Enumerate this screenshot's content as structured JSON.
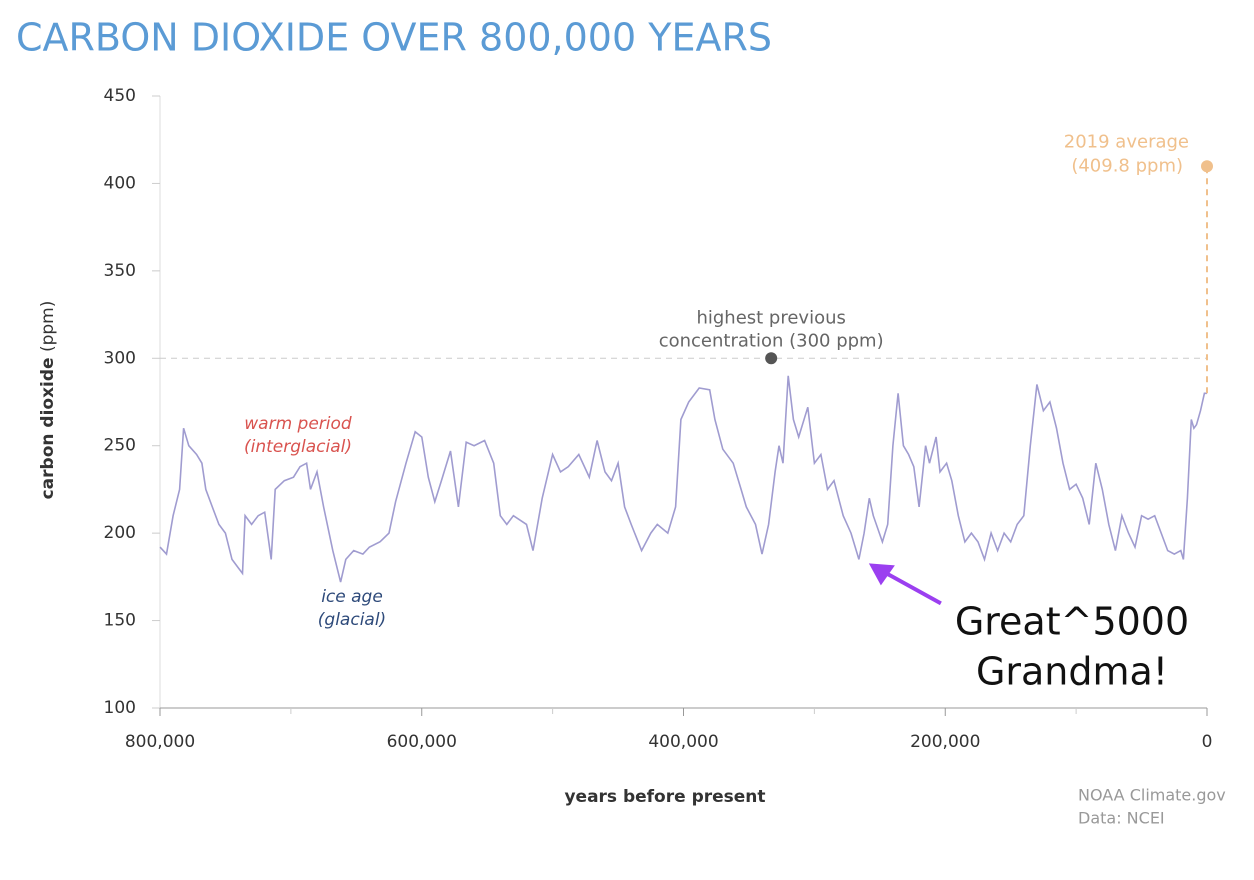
{
  "chart_data": {
    "type": "line",
    "title": "CARBON DIOXIDE OVER 800,000 YEARS",
    "ylabel": [
      "carbon dioxide",
      "(ppm)"
    ],
    "xlabel": "years before present",
    "source": [
      "NOAA Climate.gov",
      "Data: NCEI"
    ],
    "color": "#a09cd0",
    "xlim": [
      800000,
      0
    ],
    "ylim": [
      100,
      450
    ],
    "yticks": [
      100,
      150,
      200,
      250,
      300,
      350,
      400,
      450
    ],
    "xticks": [
      {
        "value": 800000,
        "label": "800,000"
      },
      {
        "value": 600000,
        "label": "600,000"
      },
      {
        "value": 400000,
        "label": "400,000"
      },
      {
        "value": 200000,
        "label": "200,000"
      },
      0
    ],
    "xminor_ticks": [
      700000,
      500000,
      300000,
      100000
    ],
    "x": [
      800000,
      795000,
      790000,
      785000,
      782000,
      778000,
      772000,
      768000,
      765000,
      760000,
      755000,
      750000,
      745000,
      740000,
      737000,
      735000,
      730000,
      725000,
      720000,
      715000,
      712000,
      705000,
      698000,
      693000,
      688000,
      685000,
      680000,
      675000,
      668000,
      662000,
      658000,
      652000,
      645000,
      640000,
      632000,
      625000,
      620000,
      612000,
      605000,
      600000,
      595000,
      590000,
      585000,
      578000,
      572000,
      566000,
      560000,
      552000,
      545000,
      540000,
      535000,
      530000,
      520000,
      515000,
      508000,
      500000,
      494000,
      488000,
      480000,
      472000,
      466000,
      460000,
      455000,
      450000,
      445000,
      440000,
      432000,
      425000,
      420000,
      412000,
      406000,
      402000,
      396000,
      388000,
      380000,
      376000,
      370000,
      362000,
      356000,
      352000,
      345000,
      340000,
      335000,
      330000,
      327000,
      324000,
      320000,
      316000,
      312000,
      305000,
      300000,
      295000,
      290000,
      285000,
      278000,
      272000,
      266000,
      262000,
      258000,
      255000,
      248000,
      244000,
      240000,
      236000,
      232000,
      228000,
      224000,
      220000,
      215000,
      212000,
      207000,
      204000,
      199000,
      195000,
      190000,
      185000,
      180000,
      175000,
      170000,
      165000,
      160000,
      155000,
      150000,
      145000,
      140000,
      135000,
      130000,
      125000,
      120000,
      115000,
      110000,
      105000,
      100000,
      95000,
      90000,
      85000,
      80000,
      75000,
      70000,
      65000,
      60000,
      55000,
      50000,
      45000,
      40000,
      35000,
      30000,
      25000,
      20000,
      18000,
      15000,
      12000,
      10000,
      8000,
      5000,
      2000,
      0
    ],
    "values": [
      192,
      188,
      210,
      225,
      260,
      250,
      245,
      240,
      225,
      215,
      205,
      200,
      185,
      180,
      177,
      210,
      205,
      210,
      212,
      185,
      225,
      230,
      232,
      238,
      240,
      225,
      235,
      215,
      190,
      172,
      185,
      190,
      188,
      192,
      195,
      200,
      218,
      240,
      258,
      255,
      232,
      218,
      230,
      247,
      215,
      252,
      250,
      253,
      240,
      210,
      205,
      210,
      205,
      190,
      220,
      245,
      235,
      238,
      245,
      232,
      253,
      235,
      230,
      240,
      215,
      205,
      190,
      200,
      205,
      200,
      215,
      265,
      275,
      283,
      282,
      265,
      248,
      240,
      225,
      215,
      205,
      188,
      205,
      235,
      250,
      240,
      290,
      265,
      255,
      272,
      240,
      245,
      225,
      230,
      210,
      200,
      185,
      200,
      220,
      210,
      195,
      205,
      250,
      280,
      250,
      245,
      238,
      215,
      250,
      240,
      255,
      235,
      240,
      230,
      210,
      195,
      200,
      195,
      185,
      200,
      190,
      200,
      195,
      205,
      210,
      250,
      285,
      270,
      275,
      260,
      240,
      225,
      228,
      220,
      205,
      240,
      225,
      205,
      190,
      210,
      200,
      192,
      210,
      208,
      210,
      200,
      190,
      188,
      190,
      185,
      220,
      265,
      260,
      262,
      270,
      280,
      280
    ],
    "warm_label": [
      "warm period",
      "(interglacial)"
    ],
    "ice_label": [
      "ice age",
      "(glacial)"
    ],
    "highest_previous": {
      "x": 333000,
      "value": 300,
      "label": [
        "highest previous",
        "concentration (300 ppm)"
      ]
    },
    "latest": {
      "x": 0,
      "value": 409.8,
      "from": 280,
      "label": [
        "2019 average",
        "(409.8 ppm)"
      ],
      "color": "#f0c08c"
    },
    "callout": {
      "x": 266000,
      "value": 185,
      "label": [
        "Great^5000",
        "Grandma!"
      ],
      "color": "#9b3ff0"
    }
  }
}
